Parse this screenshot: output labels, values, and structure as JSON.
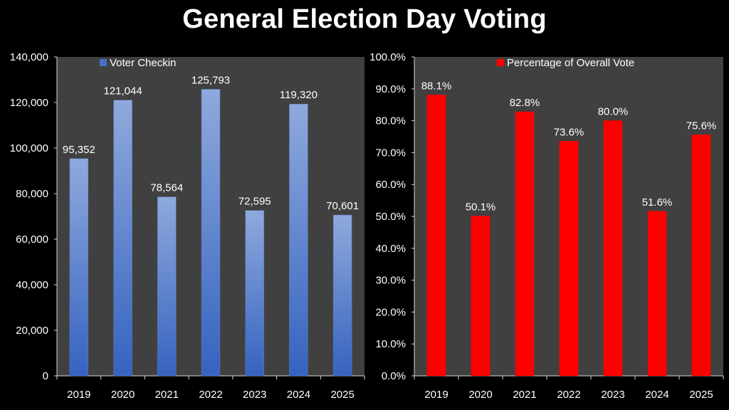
{
  "page": {
    "title": "General Election Day Voting"
  },
  "chart_data": [
    {
      "type": "bar",
      "categories": [
        "2019",
        "2020",
        "2021",
        "2022",
        "2023",
        "2024",
        "2025"
      ],
      "series": [
        {
          "name": "Voter Checkin",
          "values": [
            95352,
            121044,
            78564,
            125793,
            72595,
            119320,
            70601
          ]
        }
      ],
      "data_labels": [
        "95,352",
        "121,044",
        "78,564",
        "125,793",
        "72,595",
        "119,320",
        "70,601"
      ],
      "ylim": [
        0,
        140000
      ],
      "yticks": [
        0,
        20000,
        40000,
        60000,
        80000,
        100000,
        120000,
        140000
      ],
      "ytick_labels": [
        "0",
        "20,000",
        "40,000",
        "60,000",
        "80,000",
        "100,000",
        "120,000",
        "140,000"
      ],
      "legend_position": "top-left",
      "grid": false,
      "colors": {
        "bar": "#4472c4",
        "plot_bg": "#404040"
      }
    },
    {
      "type": "bar",
      "categories": [
        "2019",
        "2020",
        "2021",
        "2022",
        "2023",
        "2024",
        "2025"
      ],
      "series": [
        {
          "name": "Percentage of Overall Vote",
          "values": [
            88.1,
            50.1,
            82.8,
            73.6,
            80.0,
            51.6,
            75.6
          ]
        }
      ],
      "data_labels": [
        "88.1%",
        "50.1%",
        "82.8%",
        "73.6%",
        "80.0%",
        "51.6%",
        "75.6%"
      ],
      "ylim": [
        0,
        100
      ],
      "yticks": [
        0,
        10,
        20,
        30,
        40,
        50,
        60,
        70,
        80,
        90,
        100
      ],
      "ytick_labels": [
        "0.0%",
        "10.0%",
        "20.0%",
        "30.0%",
        "40.0%",
        "50.0%",
        "60.0%",
        "70.0%",
        "80.0%",
        "90.0%",
        "100.0%"
      ],
      "legend_position": "top-center",
      "grid": false,
      "colors": {
        "bar": "#ff0000",
        "plot_bg": "#404040"
      }
    }
  ]
}
